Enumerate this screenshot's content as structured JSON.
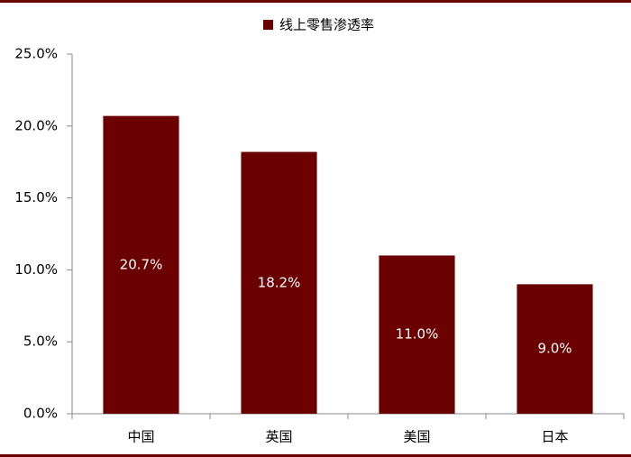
{
  "chart_data": {
    "type": "bar",
    "categories": [
      "中国",
      "英国",
      "美国",
      "日本"
    ],
    "series": [
      {
        "name": "线上零售渗透率",
        "color": "#6b0000",
        "values": [
          20.7,
          18.2,
          11.0,
          9.0
        ],
        "value_labels": [
          "20.7%",
          "18.2%",
          "11.0%",
          "9.0%"
        ]
      }
    ],
    "ylim": [
      0,
      25
    ],
    "yticks": [
      {
        "value": 0,
        "label": "0.0%"
      },
      {
        "value": 5,
        "label": "5.0%"
      },
      {
        "value": 10,
        "label": "10.0%"
      },
      {
        "value": 15,
        "label": "15.0%"
      },
      {
        "value": 20,
        "label": "20.0%"
      },
      {
        "value": 25,
        "label": "25.0%"
      }
    ],
    "grid": false,
    "legend": "top"
  }
}
